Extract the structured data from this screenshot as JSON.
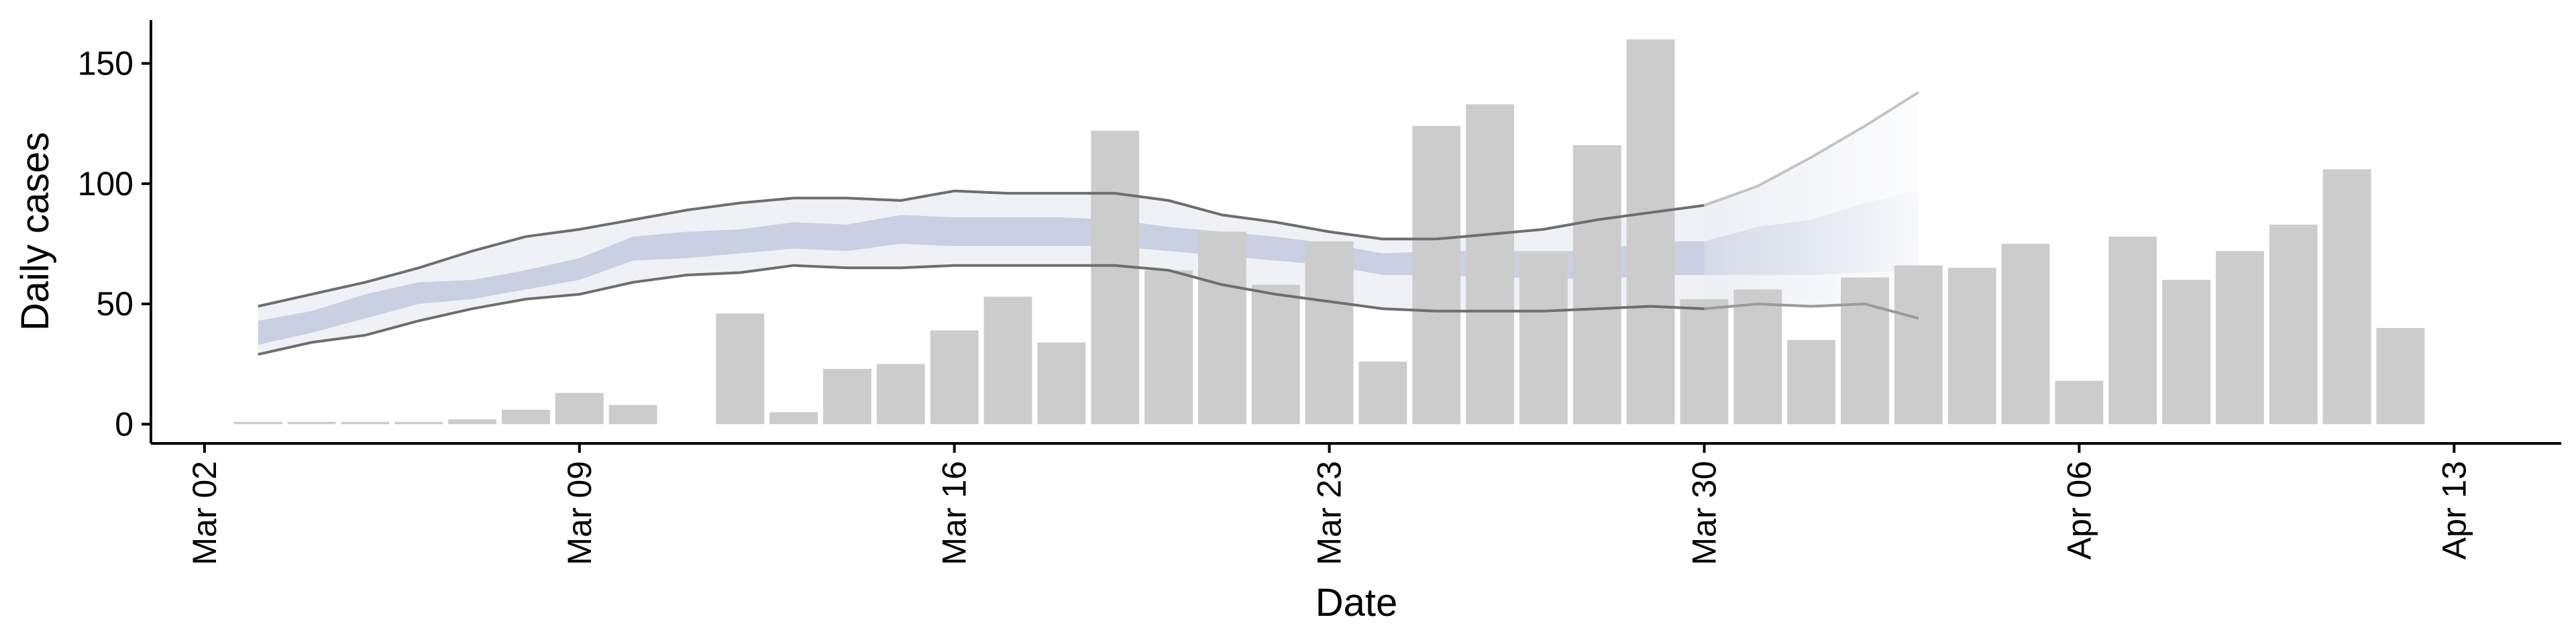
{
  "chart_data": {
    "type": "bar",
    "xlabel": "Date",
    "ylabel": "Daily cases",
    "ylim": [
      -8,
      168
    ],
    "yticks": [
      0,
      50,
      100,
      150
    ],
    "xlim": [
      "2020-03-01",
      "2020-04-15"
    ],
    "xticks": [
      {
        "date": "2020-03-02",
        "label": "Mar 02"
      },
      {
        "date": "2020-03-09",
        "label": "Mar 09"
      },
      {
        "date": "2020-03-16",
        "label": "Mar 16"
      },
      {
        "date": "2020-03-23",
        "label": "Mar 23"
      },
      {
        "date": "2020-03-30",
        "label": "Mar 30"
      },
      {
        "date": "2020-04-06",
        "label": "Apr 06"
      },
      {
        "date": "2020-04-13",
        "label": "Apr 13"
      }
    ],
    "grid": false,
    "legend": "none",
    "bars": {
      "name": "Daily cases",
      "color": "#cccccc",
      "dates": [
        "2020-03-03",
        "2020-03-04",
        "2020-03-05",
        "2020-03-06",
        "2020-03-07",
        "2020-03-08",
        "2020-03-09",
        "2020-03-10",
        "2020-03-11",
        "2020-03-12",
        "2020-03-13",
        "2020-03-14",
        "2020-03-15",
        "2020-03-16",
        "2020-03-17",
        "2020-03-18",
        "2020-03-19",
        "2020-03-20",
        "2020-03-21",
        "2020-03-22",
        "2020-03-23",
        "2020-03-24",
        "2020-03-25",
        "2020-03-26",
        "2020-03-27",
        "2020-03-28",
        "2020-03-29",
        "2020-03-30",
        "2020-03-31",
        "2020-04-01",
        "2020-04-02",
        "2020-04-03",
        "2020-04-04",
        "2020-04-05",
        "2020-04-06",
        "2020-04-07",
        "2020-04-08",
        "2020-04-09",
        "2020-04-10",
        "2020-04-11",
        "2020-04-12"
      ],
      "values": [
        1,
        1,
        1,
        1,
        2,
        6,
        13,
        8,
        0,
        46,
        5,
        23,
        25,
        39,
        53,
        34,
        122,
        64,
        80,
        58,
        76,
        26,
        124,
        133,
        71,
        116,
        160,
        52,
        56,
        35,
        61,
        66,
        65,
        75,
        18,
        78,
        60,
        72,
        83,
        106,
        40
      ]
    },
    "bands": {
      "color": "#b4bed6",
      "dates": [
        "2020-03-03",
        "2020-03-04",
        "2020-03-05",
        "2020-03-06",
        "2020-03-07",
        "2020-03-08",
        "2020-03-09",
        "2020-03-10",
        "2020-03-11",
        "2020-03-12",
        "2020-03-13",
        "2020-03-14",
        "2020-03-15",
        "2020-03-16",
        "2020-03-17",
        "2020-03-18",
        "2020-03-19",
        "2020-03-20",
        "2020-03-21",
        "2020-03-22",
        "2020-03-23",
        "2020-03-24",
        "2020-03-25",
        "2020-03-26",
        "2020-03-27",
        "2020-03-28",
        "2020-03-29",
        "2020-03-30",
        "2020-03-31",
        "2020-04-01",
        "2020-04-02",
        "2020-04-03"
      ],
      "inner_low": [
        33,
        38,
        44,
        50,
        52,
        56,
        60,
        68,
        69,
        71,
        73,
        72,
        75,
        74,
        74,
        74,
        74,
        72,
        70,
        68,
        66,
        62,
        62,
        61,
        61,
        60,
        62,
        62,
        62,
        62,
        63,
        64
      ],
      "inner_high": [
        43,
        47,
        54,
        59,
        60,
        64,
        69,
        78,
        80,
        81,
        84,
        83,
        87,
        86,
        86,
        86,
        85,
        82,
        80,
        78,
        75,
        71,
        72,
        72,
        72,
        72,
        76,
        76,
        82,
        85,
        92,
        97
      ],
      "outer_low": [
        29,
        34,
        37,
        43,
        48,
        52,
        54,
        59,
        62,
        63,
        66,
        65,
        65,
        66,
        66,
        66,
        66,
        64,
        58,
        54,
        51,
        48,
        47,
        47,
        47,
        48,
        49,
        48,
        50,
        49,
        50,
        44
      ],
      "outer_high": [
        49,
        54,
        59,
        65,
        72,
        78,
        81,
        85,
        89,
        92,
        94,
        94,
        93,
        97,
        96,
        96,
        96,
        93,
        87,
        84,
        80,
        77,
        77,
        79,
        81,
        85,
        88,
        91,
        99,
        111,
        124,
        138
      ],
      "projection_start": "2020-03-30"
    }
  }
}
